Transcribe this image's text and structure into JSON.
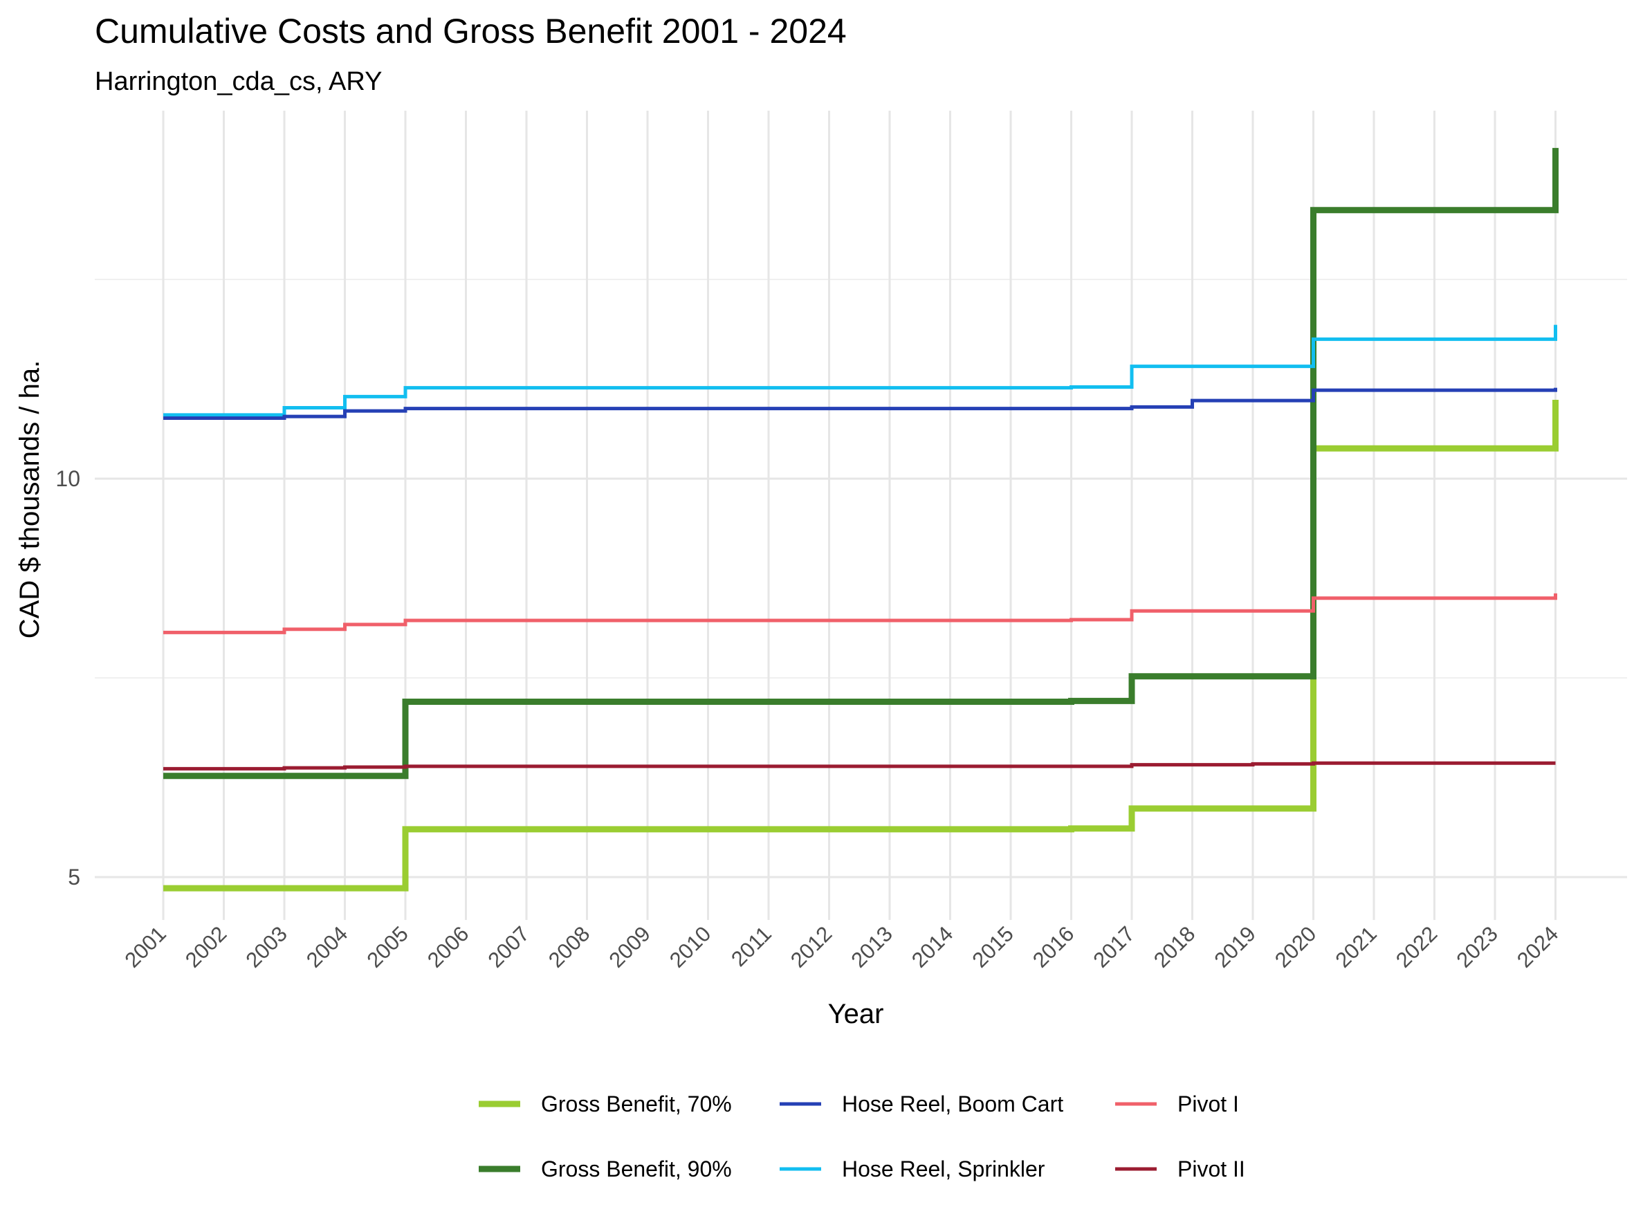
{
  "chart_data": {
    "type": "line",
    "step": true,
    "title": "Cumulative Costs and Gross Benefit 2001 - 2024",
    "subtitle": "Harrington_cda_cs, ARY",
    "xlabel": "Year",
    "ylabel": "CAD $ thousands / ha.",
    "x": [
      2001,
      2002,
      2003,
      2004,
      2005,
      2006,
      2007,
      2008,
      2009,
      2010,
      2011,
      2012,
      2013,
      2014,
      2015,
      2016,
      2017,
      2018,
      2019,
      2020,
      2021,
      2022,
      2023,
      2024
    ],
    "x_ticks": [
      "2001",
      "2002",
      "2003",
      "2004",
      "2005",
      "2006",
      "2007",
      "2008",
      "2009",
      "2010",
      "2011",
      "2012",
      "2013",
      "2014",
      "2015",
      "2016",
      "2017",
      "2018",
      "2019",
      "2020",
      "2021",
      "2022",
      "2023",
      "2024"
    ],
    "y_ticks": [
      "5",
      "10"
    ],
    "y_tick_values": [
      5,
      10
    ],
    "ylim": [
      4.6,
      14.55
    ],
    "grid": true,
    "legend_position": "bottom",
    "series": [
      {
        "name": "Gross Benefit, 70%",
        "color": "#9ACD32",
        "values": [
          4.86,
          4.86,
          4.86,
          4.86,
          5.6,
          5.6,
          5.6,
          5.6,
          5.6,
          5.6,
          5.6,
          5.6,
          5.6,
          5.6,
          5.6,
          5.61,
          5.86,
          5.86,
          5.86,
          10.38,
          10.38,
          10.38,
          10.38,
          10.99
        ]
      },
      {
        "name": "Gross Benefit, 90%",
        "color": "#3A7D2C",
        "values": [
          6.27,
          6.27,
          6.27,
          6.27,
          7.2,
          7.2,
          7.2,
          7.2,
          7.2,
          7.2,
          7.2,
          7.2,
          7.2,
          7.2,
          7.2,
          7.21,
          7.52,
          7.52,
          7.52,
          13.37,
          13.37,
          13.37,
          13.37,
          14.15
        ]
      },
      {
        "name": "Hose Reel, Boom Cart",
        "color": "#2540B5",
        "values": [
          10.76,
          10.76,
          10.78,
          10.85,
          10.88,
          10.88,
          10.88,
          10.88,
          10.88,
          10.88,
          10.88,
          10.88,
          10.88,
          10.88,
          10.88,
          10.88,
          10.9,
          10.98,
          10.98,
          11.11,
          11.11,
          11.11,
          11.11,
          11.14
        ]
      },
      {
        "name": "Hose Reel, Sprinkler",
        "color": "#12BEF0",
        "values": [
          10.8,
          10.8,
          10.89,
          11.03,
          11.14,
          11.14,
          11.14,
          11.14,
          11.14,
          11.14,
          11.14,
          11.14,
          11.14,
          11.14,
          11.14,
          11.15,
          11.41,
          11.41,
          11.41,
          11.75,
          11.75,
          11.75,
          11.75,
          11.93
        ]
      },
      {
        "name": "Pivot I",
        "color": "#F0606A",
        "values": [
          8.07,
          8.07,
          8.11,
          8.17,
          8.22,
          8.22,
          8.22,
          8.22,
          8.22,
          8.22,
          8.22,
          8.22,
          8.22,
          8.22,
          8.22,
          8.23,
          8.34,
          8.34,
          8.34,
          8.5,
          8.5,
          8.5,
          8.5,
          8.56
        ]
      },
      {
        "name": "Pivot II",
        "color": "#9B1C31",
        "values": [
          6.36,
          6.36,
          6.37,
          6.38,
          6.39,
          6.39,
          6.39,
          6.39,
          6.39,
          6.39,
          6.39,
          6.39,
          6.39,
          6.39,
          6.39,
          6.39,
          6.41,
          6.41,
          6.42,
          6.43,
          6.43,
          6.43,
          6.43,
          6.43
        ]
      }
    ]
  }
}
